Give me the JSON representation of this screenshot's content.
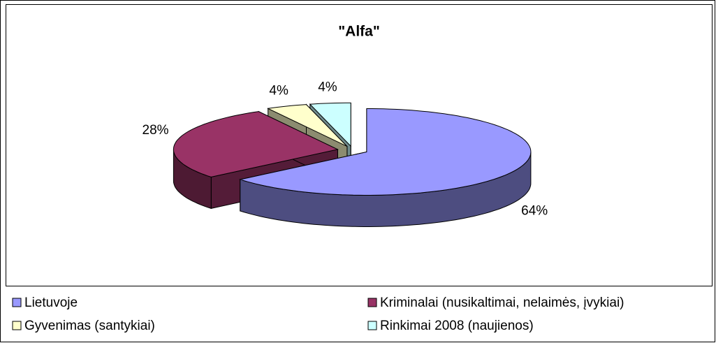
{
  "chart_data": {
    "type": "pie3d",
    "title": "\"Alfa\"",
    "categories": [
      "Lietuvoje",
      "Kriminalai (nusikaltimai, nelaimės, įvykiai)",
      "Gyvenimas (santykiai)",
      "Rinkimai 2008 (naujienos)"
    ],
    "values": [
      64,
      28,
      4,
      4
    ],
    "value_labels": [
      "64%",
      "28%",
      "4%",
      "4%"
    ],
    "colors": [
      "#9999ff",
      "#993366",
      "#ffffcc",
      "#ccffff"
    ],
    "legend": "bottom"
  }
}
